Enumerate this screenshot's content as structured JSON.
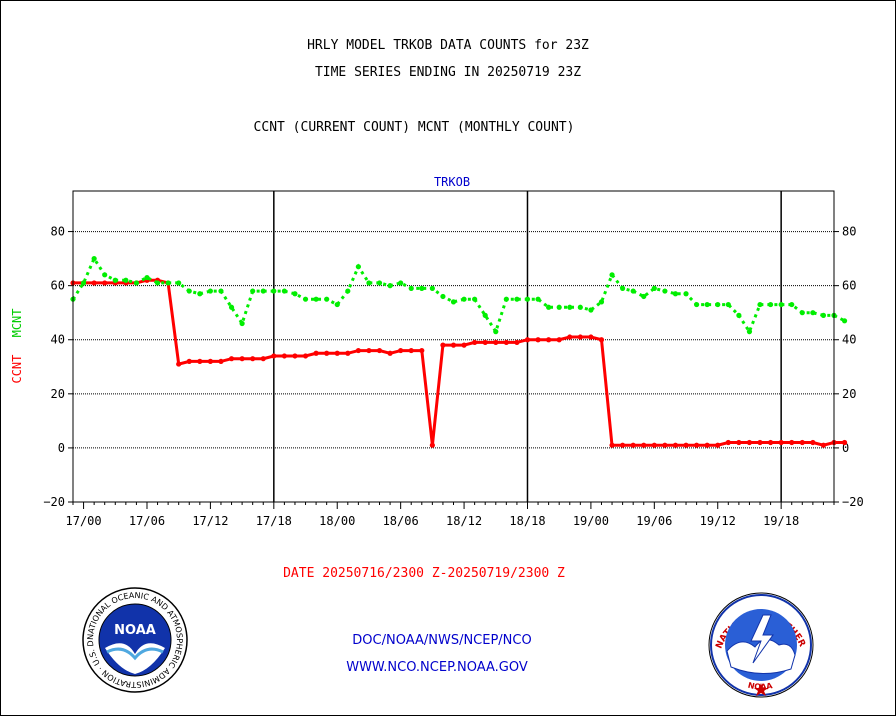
{
  "header": {
    "line1": "HRLY MODEL TRKOB DATA COUNTS for 23Z",
    "line2": "TIME SERIES ENDING IN 20250719 23Z",
    "line3": "CCNT (CURRENT COUNT) MCNT (MONTHLY COUNT)"
  },
  "footer": {
    "date_range": "DATE 20250716/2300 Z-20250719/2300 Z",
    "credit": "DOC/NOAA/NWS/NCEP/NCO",
    "website": "WWW.NCO.NCEP.NOAA.GOV"
  },
  "logos": {
    "noaa": {
      "label": "NOAA",
      "ring_text": "NATIONAL OCEANIC AND ATMOSPHERIC ADMINISTRATION · U.S. DEPARTMENT OF COMMERCE ·"
    },
    "nws": {
      "ring_text": "NATIONAL WEATHER SERVICE",
      "bottom_text": "NOAA"
    }
  },
  "chart_data": {
    "type": "line",
    "title": "TRKOB",
    "xlabel": "",
    "ylabel_parts": [
      "CCNT",
      "MCNT"
    ],
    "ylim": [
      -20,
      95
    ],
    "yticks": [
      -20,
      0,
      20,
      40,
      60,
      80
    ],
    "x_start_hour": -1,
    "x_end_hour": 71,
    "x_tick_labels": [
      {
        "hour": 0,
        "label": "17/00"
      },
      {
        "hour": 6,
        "label": "17/06"
      },
      {
        "hour": 12,
        "label": "17/12"
      },
      {
        "hour": 18,
        "label": "17/18"
      },
      {
        "hour": 24,
        "label": "18/00"
      },
      {
        "hour": 30,
        "label": "18/06"
      },
      {
        "hour": 36,
        "label": "18/12"
      },
      {
        "hour": 42,
        "label": "18/18"
      },
      {
        "hour": 48,
        "label": "19/00"
      },
      {
        "hour": 54,
        "label": "19/06"
      },
      {
        "hour": 60,
        "label": "19/12"
      },
      {
        "hour": 66,
        "label": "19/18"
      }
    ],
    "day_boundaries": [
      18,
      42,
      66
    ],
    "grid": true,
    "series": [
      {
        "name": "CCNT",
        "color": "#ff0000",
        "style": "solid",
        "values": [
          61,
          61,
          61,
          61,
          61,
          61,
          61,
          62,
          62,
          61,
          31,
          32,
          32,
          32,
          32,
          33,
          33,
          33,
          33,
          34,
          34,
          34,
          34,
          35,
          35,
          35,
          35,
          36,
          36,
          36,
          35,
          36,
          36,
          36,
          1,
          38,
          38,
          38,
          39,
          39,
          39,
          39,
          39,
          40,
          40,
          40,
          40,
          41,
          41,
          41,
          40,
          1,
          1,
          1,
          1,
          1,
          1,
          1,
          1,
          1,
          1,
          1,
          2,
          2,
          2,
          2,
          2,
          2,
          2,
          2,
          2,
          1,
          2,
          2
        ]
      },
      {
        "name": "MCNT",
        "color": "#00ee00",
        "style": "dotted",
        "values": [
          55,
          61,
          70,
          64,
          62,
          62,
          61,
          63,
          61,
          61,
          61,
          58,
          57,
          58,
          58,
          52,
          46,
          58,
          58,
          58,
          58,
          57,
          55,
          55,
          55,
          53,
          58,
          67,
          61,
          61,
          60,
          61,
          59,
          59,
          59,
          56,
          54,
          55,
          55,
          49,
          43,
          55,
          55,
          55,
          55,
          52,
          52,
          52,
          52,
          51,
          54,
          64,
          59,
          58,
          56,
          59,
          58,
          57,
          57,
          53,
          53,
          53,
          53,
          49,
          43,
          53,
          53,
          53,
          53,
          50,
          50,
          49,
          49,
          47
        ]
      }
    ]
  }
}
